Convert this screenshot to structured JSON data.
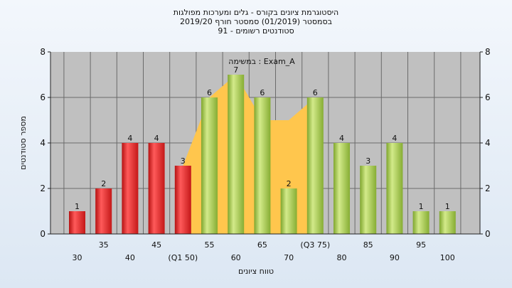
{
  "chart_data": {
    "type": "bar",
    "title_lines": [
      "היסטוגרמת ציונים בקורס - גלים ומערכות מפולגות",
      "בסמסטר  (01/2019)  סמסטר חורף 2019/20",
      "סטודנטים רשומים - 91"
    ],
    "subtitle": "במשימה : Exam_A",
    "xlabel": "טווח ציונים",
    "ylabel": "מספר סטודנטים",
    "ylim": [
      0,
      8
    ],
    "yticks": [
      0,
      2,
      4,
      6,
      8
    ],
    "categories": [
      "30",
      "35",
      "40",
      "45",
      "(Q1 50)",
      "55",
      "60",
      "65",
      "70",
      "(Q3 75)",
      "80",
      "85",
      "90",
      "95",
      "100"
    ],
    "values": [
      1,
      2,
      4,
      4,
      3,
      6,
      7,
      6,
      2,
      6,
      4,
      3,
      4,
      1,
      1
    ],
    "bar_colors": [
      "red",
      "red",
      "red",
      "red",
      "red",
      "green",
      "green",
      "green",
      "green",
      "green",
      "green",
      "green",
      "green",
      "green",
      "green"
    ],
    "area_series": {
      "from_index": 4,
      "to_index": 9,
      "values": [
        3,
        6,
        7,
        5,
        5,
        6
      ]
    },
    "grid": true,
    "colors": {
      "plot_background": "#c0c0c0",
      "red_bar": "#e52b2b",
      "green_bar": "#9fc24a",
      "area_fill": "#ffc64d",
      "grid": "#6b6b6b"
    }
  }
}
